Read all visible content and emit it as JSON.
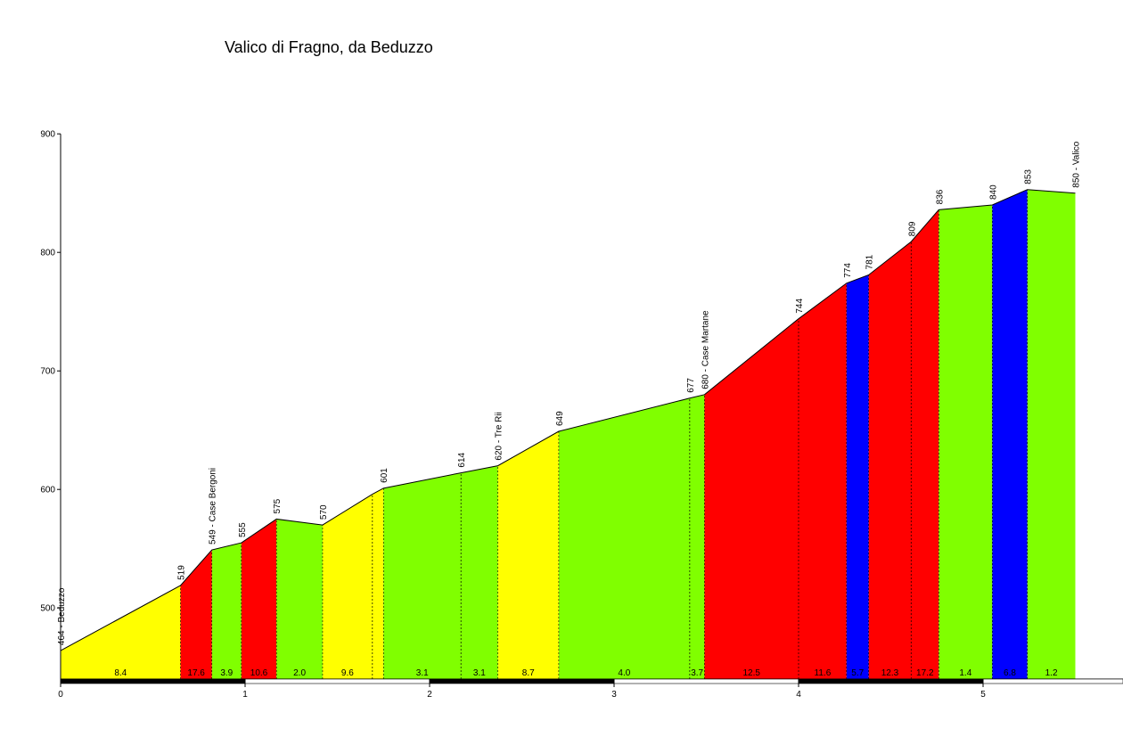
{
  "chart_data": {
    "type": "area",
    "title": "Valico di Fragno, da Beduzzo",
    "xlabel": "",
    "ylabel": "",
    "xlim": [
      0,
      5.65
    ],
    "ylim": [
      440,
      900
    ],
    "x_ticks": [
      "0",
      "1",
      "2",
      "3",
      "4",
      "5"
    ],
    "x_tick_values": [
      0,
      1,
      2,
      3,
      4,
      5
    ],
    "y_ticks": [
      "500",
      "600",
      "700",
      "800",
      "900"
    ],
    "y_tick_values": [
      500,
      600,
      700,
      800,
      900
    ],
    "grid": false,
    "profile": [
      {
        "x": 0.0,
        "y": 464,
        "label": "464 - Beduzzo"
      },
      {
        "x": 0.65,
        "y": 519,
        "label": "519"
      },
      {
        "x": 0.82,
        "y": 549,
        "label": "549 - Case Bergoni"
      },
      {
        "x": 0.98,
        "y": 555,
        "label": "555"
      },
      {
        "x": 1.17,
        "y": 575,
        "label": "575"
      },
      {
        "x": 1.42,
        "y": 570,
        "label": "570"
      },
      {
        "x": 1.69,
        "y": 596,
        "label": ""
      },
      {
        "x": 1.75,
        "y": 601,
        "label": "601"
      },
      {
        "x": 2.17,
        "y": 614,
        "label": "614"
      },
      {
        "x": 2.37,
        "y": 620,
        "label": "620 - Tre Rii"
      },
      {
        "x": 2.7,
        "y": 649,
        "label": "649"
      },
      {
        "x": 3.41,
        "y": 677,
        "label": "677"
      },
      {
        "x": 3.49,
        "y": 680,
        "label": "680 - Case Martane"
      },
      {
        "x": 4.0,
        "y": 744,
        "label": "744"
      },
      {
        "x": 4.26,
        "y": 774,
        "label": "774"
      },
      {
        "x": 4.38,
        "y": 781,
        "label": "781"
      },
      {
        "x": 4.61,
        "y": 809,
        "label": "809"
      },
      {
        "x": 4.76,
        "y": 836,
        "label": "836"
      },
      {
        "x": 5.05,
        "y": 840,
        "label": "840"
      },
      {
        "x": 5.24,
        "y": 853,
        "label": "853"
      },
      {
        "x": 5.5,
        "y": 850,
        "label": "850 - Valico"
      }
    ],
    "segments": [
      {
        "from": 0.0,
        "to": 0.65,
        "gradient": "8.4",
        "color": "#ffff00"
      },
      {
        "from": 0.65,
        "to": 0.82,
        "gradient": "17.6",
        "color": "#ff0000"
      },
      {
        "from": 0.82,
        "to": 0.98,
        "gradient": "3.9",
        "color": "#80ff00"
      },
      {
        "from": 0.98,
        "to": 1.17,
        "gradient": "10.6",
        "color": "#ff0000"
      },
      {
        "from": 1.17,
        "to": 1.42,
        "gradient": "2.0",
        "color": "#80ff00"
      },
      {
        "from": 1.42,
        "to": 1.75,
        "gradient": "9.6",
        "color": "#ffff00"
      },
      {
        "from": 1.75,
        "to": 2.37,
        "gradient": "3.1",
        "color": "#80ff00"
      },
      {
        "from": 2.37,
        "to": 2.7,
        "gradient": "8.7",
        "color": "#ffff00"
      },
      {
        "from": 2.7,
        "to": 3.49,
        "gradient": "4.0",
        "color": "#80ff00"
      },
      {
        "from": 3.49,
        "to": 4.26,
        "gradient": "12.5",
        "color": "#ff0000"
      },
      {
        "from": 4.26,
        "to": 4.38,
        "gradient": "5.7",
        "color": "#0000ff"
      },
      {
        "from": 4.38,
        "to": 4.76,
        "gradient": "12.3",
        "color": "#ff0000"
      },
      {
        "from": 4.76,
        "to": 5.05,
        "gradient": "1.4",
        "color": "#80ff00"
      },
      {
        "from": 5.05,
        "to": 5.24,
        "gradient": "6.8",
        "color": "#0000ff"
      },
      {
        "from": 5.24,
        "to": 5.5,
        "gradient": "1.2",
        "color": "#80ff00"
      }
    ],
    "dashed_dividers": [
      1.69,
      2.17,
      3.41,
      4.0,
      4.61
    ],
    "gradient_labels": [
      {
        "x": 0.325,
        "text": "8.4"
      },
      {
        "x": 0.735,
        "text": "17.6"
      },
      {
        "x": 0.9,
        "text": "3.9"
      },
      {
        "x": 1.075,
        "text": "10.6"
      },
      {
        "x": 1.295,
        "text": "2.0"
      },
      {
        "x": 1.555,
        "text": "9.6"
      },
      {
        "x": 1.96,
        "text": "3.1"
      },
      {
        "x": 2.27,
        "text": "3.1"
      },
      {
        "x": 2.535,
        "text": "8.7"
      },
      {
        "x": 3.055,
        "text": "4.0"
      },
      {
        "x": 3.45,
        "text": "3.7"
      },
      {
        "x": 3.745,
        "text": "12.5"
      },
      {
        "x": 4.13,
        "text": "11.6"
      },
      {
        "x": 4.32,
        "text": "5.7"
      },
      {
        "x": 4.495,
        "text": "12.3"
      },
      {
        "x": 4.685,
        "text": "17.2"
      },
      {
        "x": 4.905,
        "text": "1.4"
      },
      {
        "x": 5.145,
        "text": "6.8"
      },
      {
        "x": 5.37,
        "text": "1.2"
      }
    ]
  }
}
